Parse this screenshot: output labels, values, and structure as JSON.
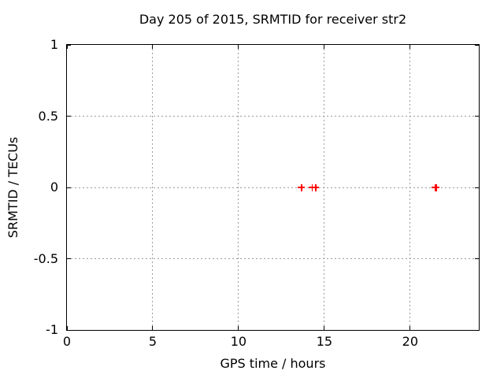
{
  "figure": {
    "background": "#ffffff",
    "text_color": "#000000"
  },
  "chart_data": {
    "type": "scatter",
    "title": "Day 205 of 2015, SRMTID for receiver str2",
    "xlabel": "GPS time / hours",
    "ylabel": "SRMTID / TECUs",
    "xlim": [
      0,
      24
    ],
    "ylim": [
      -1,
      1
    ],
    "xticks": [
      0,
      5,
      10,
      15,
      20
    ],
    "yticks": [
      -1,
      -0.5,
      0,
      0.5,
      1
    ],
    "grid": true,
    "grid_style": "dotted",
    "grid_color": "#9b9b9b",
    "border_color": "#000000",
    "legend": "none",
    "marker": "plus",
    "marker_color": "#ff0000",
    "series": [
      {
        "x": [
          13.67,
          14.3,
          14.5,
          21.45,
          21.52
        ],
        "y": [
          0,
          0,
          0,
          0,
          0
        ]
      }
    ]
  }
}
